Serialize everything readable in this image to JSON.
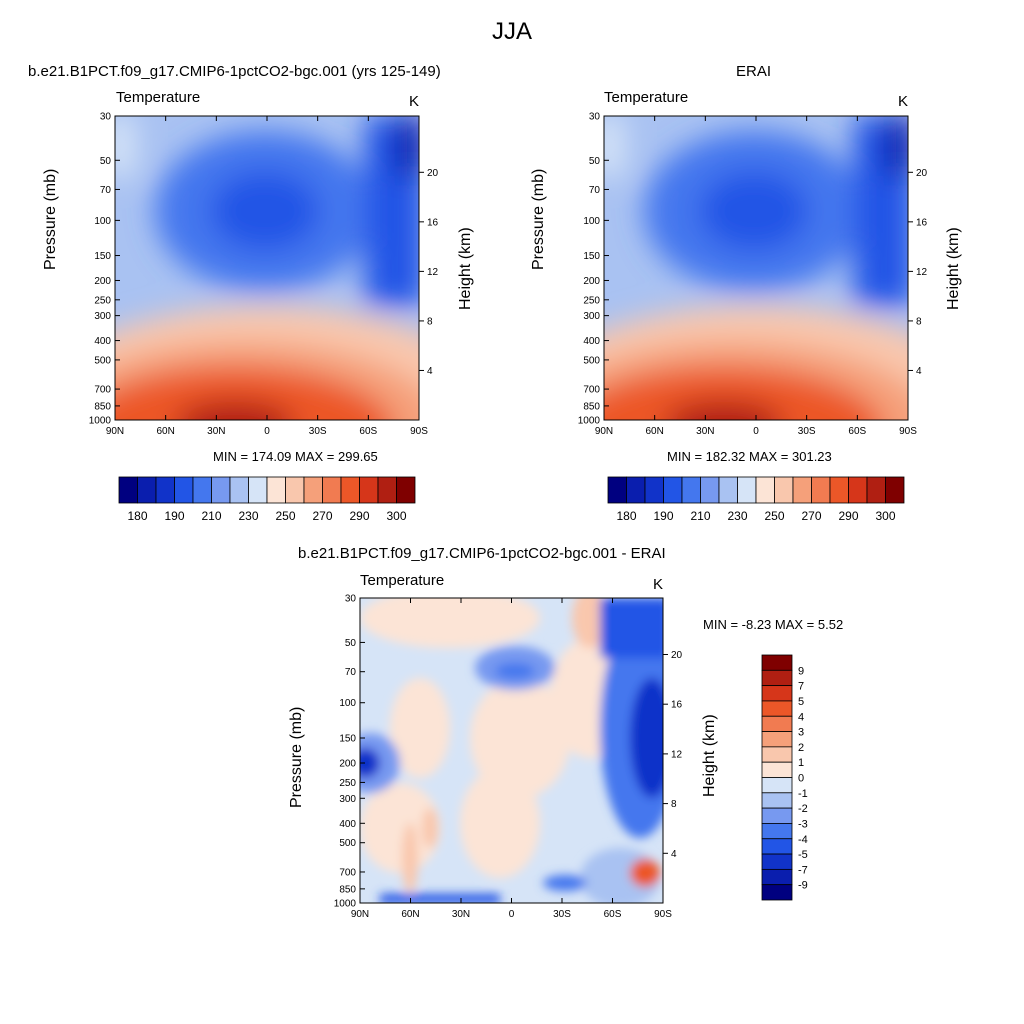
{
  "main_title": "JJA",
  "panels": [
    {
      "title": "b.e21.B1PCT.f09_g17.CMIP6-1pctCO2-bgc.001 (yrs 125-149)",
      "subtitle_left": "Temperature",
      "subtitle_right": "K",
      "min_max": "MIN = 174.09  MAX = 299.65"
    },
    {
      "title": "ERAI",
      "subtitle_left": "Temperature",
      "subtitle_right": "K",
      "min_max": "MIN = 182.32  MAX = 301.23"
    },
    {
      "title": "b.e21.B1PCT.f09_g17.CMIP6-1pctCO2-bgc.001 - ERAI",
      "subtitle_left": "Temperature",
      "subtitle_right": "K",
      "min_max": "MIN =  -8.23  MAX =   5.52"
    }
  ],
  "axes": {
    "left_label": "Pressure (mb)",
    "right_label": "Height (km)"
  },
  "chart_data": [
    {
      "type": "heatmap",
      "title": "b.e21.B1PCT.f09_g17.CMIP6-1pctCO2-bgc.001 (yrs 125-149)",
      "xlabel": "",
      "ylabel": "Pressure (mb)",
      "y2label": "Height (km)",
      "x_ticks": [
        "90N",
        "60N",
        "30N",
        "0",
        "30S",
        "60S",
        "90S"
      ],
      "x_tick_values": [
        90,
        60,
        30,
        0,
        -30,
        -60,
        -90
      ],
      "y_ticks": [
        30,
        50,
        70,
        100,
        150,
        200,
        250,
        300,
        400,
        500,
        700,
        850,
        1000
      ],
      "y2_ticks": [
        4,
        8,
        12,
        16,
        20
      ],
      "ylim": [
        1000,
        30
      ],
      "colorbar": {
        "labels": [
          "180",
          "190",
          "210",
          "230",
          "250",
          "270",
          "290",
          "300"
        ],
        "colors": [
          "#000080",
          "#0A1EAE",
          "#1133C9",
          "#2255E6",
          "#4477EE",
          "#7799F0",
          "#A9C2F2",
          "#D6E4F7",
          "#FCE4D6",
          "#F9C7AD",
          "#F5A07A",
          "#F17B51",
          "#EC5728",
          "#D6361A",
          "#B01F12",
          "#7F0000"
        ]
      },
      "min": 174.09,
      "max": 299.65
    },
    {
      "type": "heatmap",
      "title": "ERAI",
      "x_ticks": [
        "90N",
        "60N",
        "30N",
        "0",
        "30S",
        "60S",
        "90S"
      ],
      "x_tick_values": [
        90,
        60,
        30,
        0,
        -30,
        -60,
        -90
      ],
      "y_ticks": [
        30,
        50,
        70,
        100,
        150,
        200,
        250,
        300,
        400,
        500,
        700,
        850,
        1000
      ],
      "y2_ticks": [
        4,
        8,
        12,
        16,
        20
      ],
      "ylim": [
        1000,
        30
      ],
      "colorbar": {
        "labels": [
          "180",
          "190",
          "210",
          "230",
          "250",
          "270",
          "290",
          "300"
        ],
        "colors": [
          "#000080",
          "#0A1EAE",
          "#1133C9",
          "#2255E6",
          "#4477EE",
          "#7799F0",
          "#A9C2F2",
          "#D6E4F7",
          "#FCE4D6",
          "#F9C7AD",
          "#F5A07A",
          "#F17B51",
          "#EC5728",
          "#D6361A",
          "#B01F12",
          "#7F0000"
        ]
      },
      "min": 182.32,
      "max": 301.23
    },
    {
      "type": "heatmap",
      "title": "b.e21.B1PCT.f09_g17.CMIP6-1pctCO2-bgc.001 - ERAI",
      "x_ticks": [
        "90N",
        "60N",
        "30N",
        "0",
        "30S",
        "60S",
        "90S"
      ],
      "x_tick_values": [
        90,
        60,
        30,
        0,
        -30,
        -60,
        -90
      ],
      "y_ticks": [
        30,
        50,
        70,
        100,
        150,
        200,
        250,
        300,
        400,
        500,
        700,
        850,
        1000
      ],
      "y2_ticks": [
        4,
        8,
        12,
        16,
        20
      ],
      "ylim": [
        1000,
        30
      ],
      "colorbar": {
        "labels": [
          "9",
          "7",
          "5",
          "4",
          "3",
          "2",
          "1",
          "0",
          "-1",
          "-2",
          "-3",
          "-4",
          "-5",
          "-7",
          "-9"
        ],
        "colors": [
          "#7F0000",
          "#B01F12",
          "#D6361A",
          "#EC5728",
          "#F17B51",
          "#F5A07A",
          "#F9C7AD",
          "#FCE4D6",
          "#D6E4F7",
          "#A9C2F2",
          "#7799F0",
          "#4477EE",
          "#2255E6",
          "#1133C9",
          "#0A1EAE",
          "#000080"
        ]
      },
      "min": -8.23,
      "max": 5.52
    }
  ]
}
